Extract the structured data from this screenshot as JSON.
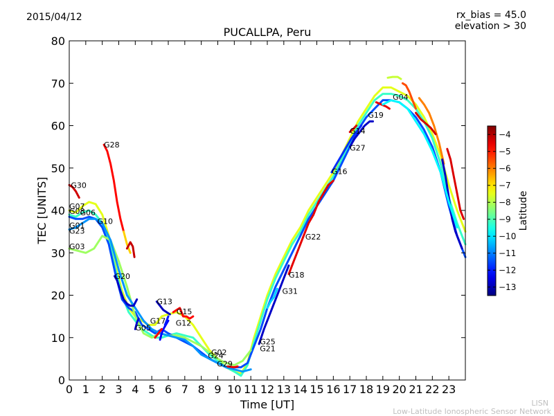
{
  "header": {
    "date": "2015/04/12",
    "title": "PUCALLPA, Peru",
    "rx_bias": "rx_bias = 45.0",
    "elevation": "elevation > 30"
  },
  "footer": {
    "line1": "LISN",
    "line2": "Low-Latitude Ionospheric Sensor Network"
  },
  "chart_data": {
    "type": "scatter",
    "title": "PUCALLPA, Peru",
    "xlabel": "Time [UT]",
    "ylabel": "TEC [UNITS]",
    "xlim": [
      0,
      24
    ],
    "ylim": [
      0,
      80
    ],
    "xticks": [
      0,
      1,
      2,
      3,
      4,
      5,
      6,
      7,
      8,
      9,
      10,
      11,
      12,
      13,
      14,
      15,
      16,
      17,
      18,
      19,
      20,
      21,
      22,
      23
    ],
    "yticks": [
      0,
      10,
      20,
      30,
      40,
      50,
      60,
      70,
      80
    ],
    "grid": false,
    "colorbar": {
      "label": "Latitude",
      "min": -13.5,
      "max": -3.5,
      "ticks": [
        -4,
        -5,
        -6,
        -7,
        -8,
        -9,
        -10,
        -11,
        -12,
        -13
      ],
      "colormap": "jet"
    },
    "labels": [
      {
        "text": "G28",
        "x": 2.1,
        "y": 55.5
      },
      {
        "text": "G30",
        "x": 0.1,
        "y": 46
      },
      {
        "text": "G07",
        "x": 0.0,
        "y": 41
      },
      {
        "text": "G08",
        "x": 0.0,
        "y": 39.8
      },
      {
        "text": "G06",
        "x": 0.65,
        "y": 39.5
      },
      {
        "text": "G10",
        "x": 1.7,
        "y": 37.5
      },
      {
        "text": "G01",
        "x": 0.0,
        "y": 36.5
      },
      {
        "text": "G23",
        "x": 0.0,
        "y": 35.2
      },
      {
        "text": "G03",
        "x": 0.0,
        "y": 31.5
      },
      {
        "text": "G20",
        "x": 2.75,
        "y": 24.5
      },
      {
        "text": "G13",
        "x": 5.3,
        "y": 18.5
      },
      {
        "text": "G15",
        "x": 6.5,
        "y": 16.2
      },
      {
        "text": "G17",
        "x": 4.9,
        "y": 14.0
      },
      {
        "text": "G12",
        "x": 6.45,
        "y": 13.5
      },
      {
        "text": "G05",
        "x": 4.0,
        "y": 12.3
      },
      {
        "text": "G02",
        "x": 8.6,
        "y": 6.5
      },
      {
        "text": "G24",
        "x": 8.4,
        "y": 5.8
      },
      {
        "text": "G29",
        "x": 8.95,
        "y": 3.8
      },
      {
        "text": "G25",
        "x": 11.55,
        "y": 9.1
      },
      {
        "text": "G21",
        "x": 11.55,
        "y": 7.4
      },
      {
        "text": "G31",
        "x": 12.9,
        "y": 21.0
      },
      {
        "text": "G18",
        "x": 13.3,
        "y": 24.8
      },
      {
        "text": "G22",
        "x": 14.3,
        "y": 33.8
      },
      {
        "text": "G16",
        "x": 15.9,
        "y": 49.2
      },
      {
        "text": "G27",
        "x": 17.0,
        "y": 54.8
      },
      {
        "text": "G14",
        "x": 17.0,
        "y": 58.8
      },
      {
        "text": "G19",
        "x": 18.1,
        "y": 62.5
      },
      {
        "text": "G04",
        "x": 19.6,
        "y": 66.8
      }
    ],
    "series": [
      {
        "lat": -7.5,
        "x": [
          0.0,
          0.4,
          0.8,
          1.2,
          1.6,
          2.0,
          2.4,
          2.8,
          3.2,
          3.6,
          4.0,
          4.4,
          4.8,
          5.2,
          5.6,
          6.0,
          6.5,
          7.0,
          7.5,
          8.0,
          8.5,
          9.0,
          9.5,
          10.0,
          10.4,
          10.8,
          11.2,
          11.6,
          12.0,
          12.5,
          13.0,
          13.5,
          14.0,
          14.5,
          15.0,
          15.5,
          16.0,
          16.5,
          17.0,
          17.5,
          18.0,
          18.5,
          19.0,
          19.5,
          20.0,
          20.5,
          21.0,
          21.5,
          22.0,
          22.5,
          23.0,
          23.5,
          24.0
        ],
        "y": [
          40,
          39.5,
          41,
          42,
          41.5,
          39,
          34,
          27,
          21,
          17,
          15,
          14,
          13,
          13,
          15,
          15.5,
          16,
          15,
          13,
          10,
          7,
          5,
          3,
          2,
          1.5,
          4,
          10,
          15,
          20,
          25,
          29,
          33,
          36,
          40,
          43,
          46,
          49,
          53,
          57,
          61,
          64,
          67,
          69,
          69,
          68,
          67,
          65,
          62,
          58,
          53,
          46,
          40,
          35
        ]
      },
      {
        "lat": -9.2,
        "x": [
          0.0,
          0.4,
          0.8,
          1.2,
          1.6,
          2.0,
          2.4,
          2.8,
          3.2,
          3.6,
          4.0,
          4.4,
          4.8,
          5.2,
          5.6,
          6.0,
          6.5,
          7.0,
          7.5,
          8.0,
          8.5,
          9.0,
          9.5,
          10.0,
          10.4,
          10.8,
          11.2,
          11.6,
          12.0,
          12.5,
          13.0,
          13.5,
          14.0,
          14.5,
          15.0,
          15.5,
          16.0,
          16.5,
          17.0,
          17.5,
          18.0,
          18.5,
          19.0,
          19.5,
          20.0,
          20.5,
          21.0,
          21.5,
          22.0,
          22.5,
          23.0,
          23.5,
          24.0
        ],
        "y": [
          39,
          38.5,
          39.5,
          40,
          39,
          37,
          33,
          26,
          20,
          16,
          14,
          12,
          11,
          10,
          10,
          10.5,
          11,
          10.5,
          10,
          8,
          6,
          4.5,
          3,
          2,
          1,
          3.5,
          9,
          14,
          19,
          24,
          28,
          32,
          35,
          39,
          42,
          45,
          48,
          52,
          56,
          60,
          63,
          66,
          67.5,
          67.5,
          67,
          66,
          64,
          61,
          57,
          51,
          43,
          37,
          32
        ]
      },
      {
        "lat": -11.5,
        "x": [
          0.0,
          0.4,
          0.8,
          1.2,
          1.6,
          2.0,
          2.4,
          2.8,
          3.2,
          3.6,
          4.0,
          4.4,
          4.8,
          5.2,
          5.6,
          6.0,
          6.5,
          7.0,
          7.5,
          8.0,
          8.5,
          9.0,
          9.5,
          10.0,
          10.4,
          10.8,
          11.2,
          11.6,
          12.0,
          12.5,
          13.0,
          13.5,
          14.0,
          14.5,
          15.0,
          15.5,
          16.0,
          16.5,
          17.0,
          17.5,
          18.0,
          18.5,
          19.0,
          19.5,
          20.0,
          20.5,
          21.0,
          21.5,
          22.0,
          22.5,
          23.0,
          23.5,
          24.0
        ],
        "y": [
          38.5,
          38,
          38,
          38.5,
          38,
          36,
          32,
          25,
          19,
          17,
          16,
          13,
          12,
          11,
          12,
          11,
          10,
          9,
          8,
          6.5,
          5,
          4,
          3,
          3,
          3,
          4,
          8,
          12,
          17,
          22,
          26,
          30,
          34,
          38,
          41,
          44,
          47,
          51,
          55,
          59,
          62,
          64,
          66,
          66,
          65.5,
          64,
          62,
          59,
          55,
          49,
          41,
          34,
          29
        ]
      },
      {
        "lat": -8.2,
        "x": [
          0.0,
          0.5,
          1.0,
          1.5,
          2.0,
          2.5,
          3.0,
          3.5,
          4.0,
          4.5,
          5.0,
          5.5,
          6.0,
          6.5,
          7.0,
          7.5,
          8.0,
          8.5,
          9.0,
          9.5,
          10.0,
          10.5,
          11.0
        ],
        "y": [
          31,
          30.5,
          30,
          31,
          34,
          33,
          28,
          22,
          15,
          11,
          10,
          11,
          10.5,
          10.5,
          10,
          9,
          8,
          6.5,
          5,
          4,
          3.5,
          4.5,
          7
        ]
      },
      {
        "lat": -10.8,
        "x": [
          0.0,
          0.4,
          0.8,
          1.2,
          1.6,
          2.0,
          2.5,
          3.0,
          3.5,
          4.0,
          4.5,
          5.0,
          5.5,
          6.0,
          6.5,
          7.0,
          7.5,
          8.0,
          8.5,
          9.0,
          9.5,
          10.0,
          10.5,
          11.0
        ],
        "y": [
          35.5,
          36,
          37,
          38,
          38,
          37,
          33,
          26,
          20,
          17,
          14,
          12,
          11,
          10.5,
          10,
          9.5,
          8,
          6,
          5,
          4,
          3,
          2.5,
          2,
          2.5
        ]
      },
      {
        "lat": -4.8,
        "x": [
          2.1,
          2.3,
          2.5,
          2.7,
          2.9,
          3.1,
          3.3
        ],
        "y": [
          55.5,
          54,
          51,
          47,
          42,
          38,
          35
        ]
      },
      {
        "lat": -6.8,
        "x": [
          3.3,
          3.5,
          3.7
        ],
        "y": [
          35,
          32,
          30
        ]
      },
      {
        "lat": -4.2,
        "x": [
          3.5,
          3.7,
          3.85,
          3.95
        ],
        "y": [
          31,
          32.5,
          31.5,
          29
        ]
      },
      {
        "lat": -4.3,
        "x": [
          0.0,
          0.2,
          0.4,
          0.6
        ],
        "y": [
          46,
          45.5,
          44.5,
          43
        ]
      },
      {
        "lat": -12.8,
        "x": [
          2.75,
          2.9,
          3.1,
          3.3,
          3.5,
          3.7,
          3.9,
          4.1
        ],
        "y": [
          24.5,
          23.5,
          21,
          19,
          18,
          17.5,
          17.5,
          19
        ]
      },
      {
        "lat": -12.9,
        "x": [
          5.3,
          5.5,
          5.7,
          5.9,
          6.1
        ],
        "y": [
          18.5,
          17.5,
          16.5,
          16,
          15.5
        ]
      },
      {
        "lat": -4.8,
        "x": [
          6.3,
          6.5,
          6.7,
          6.9,
          7.1,
          7.3,
          7.5
        ],
        "y": [
          16,
          16.5,
          17,
          15,
          15,
          14.5,
          15
        ]
      },
      {
        "lat": -12.7,
        "x": [
          4.0,
          4.1,
          4.2
        ],
        "y": [
          12,
          13.5,
          14.5
        ]
      },
      {
        "lat": -12.3,
        "x": [
          5.5,
          5.6,
          5.7,
          5.85,
          6.0
        ],
        "y": [
          9.5,
          11,
          12,
          13,
          14
        ]
      },
      {
        "lat": -12.8,
        "x": [
          11.5,
          11.8,
          12.1,
          12.4,
          12.7,
          13.0,
          13.3
        ],
        "y": [
          8.5,
          12,
          15,
          18,
          21,
          24,
          27
        ]
      },
      {
        "lat": -10.2,
        "x": [
          12.0,
          12.2,
          12.4,
          12.6
        ],
        "y": [
          17,
          18.5,
          19.5,
          21.5
        ]
      },
      {
        "lat": -4.5,
        "x": [
          13.3,
          13.6,
          13.9,
          14.2,
          14.5,
          14.8,
          15.1,
          15.4,
          15.7,
          16.0
        ],
        "y": [
          25,
          28,
          31,
          34,
          37,
          39,
          42,
          44,
          46,
          47
        ]
      },
      {
        "lat": -11.8,
        "x": [
          15.9,
          16.2,
          16.5,
          16.8,
          17.1,
          17.4,
          17.7
        ],
        "y": [
          49,
          51,
          53,
          55,
          57,
          58.5,
          60
        ]
      },
      {
        "lat": -12.8,
        "x": [
          17.0,
          17.3,
          17.6,
          17.9,
          18.2,
          18.4
        ],
        "y": [
          55,
          57,
          58.5,
          60,
          61,
          61
        ]
      },
      {
        "lat": -4.4,
        "x": [
          17.0,
          17.2,
          17.4
        ],
        "y": [
          58.5,
          59.2,
          60
        ]
      },
      {
        "lat": -4.5,
        "x": [
          18.6,
          18.9,
          19.2,
          19.4
        ],
        "y": [
          65.5,
          65,
          64.5,
          64
        ]
      },
      {
        "lat": -7.8,
        "x": [
          19.3,
          19.6,
          19.9,
          20.1
        ],
        "y": [
          71.3,
          71.5,
          71.5,
          71
        ]
      },
      {
        "lat": -5.5,
        "x": [
          20.2,
          20.4,
          20.6,
          20.8,
          21.0
        ],
        "y": [
          70,
          69.5,
          68,
          66,
          64
        ]
      },
      {
        "lat": -6.0,
        "x": [
          21.2,
          21.5,
          21.8,
          22.1,
          22.4,
          22.7
        ],
        "y": [
          66.5,
          65,
          63,
          60,
          56,
          51
        ]
      },
      {
        "lat": -4.3,
        "x": [
          21.0,
          21.3,
          21.6,
          21.9,
          22.2
        ],
        "y": [
          63,
          61.5,
          60.5,
          59.5,
          58
        ]
      },
      {
        "lat": -4.4,
        "x": [
          22.9,
          23.1,
          23.3,
          23.5,
          23.7,
          23.9
        ],
        "y": [
          54.5,
          52,
          48,
          44,
          40,
          38
        ]
      },
      {
        "lat": -12.8,
        "x": [
          22.6,
          22.8,
          23.0,
          23.2,
          23.4,
          23.6,
          23.8
        ],
        "y": [
          52,
          48,
          43,
          38,
          35,
          33,
          31
        ]
      },
      {
        "lat": -9.8,
        "x": [
          19.0,
          19.5,
          20.0,
          20.5,
          21.0,
          21.5,
          22.0,
          22.5,
          23.0,
          23.5
        ],
        "y": [
          65,
          66,
          65.5,
          64,
          61,
          58,
          54,
          49,
          42,
          36
        ]
      },
      {
        "lat": -4.6,
        "x": [
          9.6,
          9.8,
          10.0,
          10.2
        ],
        "y": [
          3.2,
          3.1,
          3.0,
          3.2
        ]
      },
      {
        "lat": -4.7,
        "x": [
          5.2,
          5.4,
          5.6
        ],
        "y": [
          10,
          11,
          12
        ]
      },
      {
        "lat": -12.0,
        "x": [
          5.8,
          5.9,
          6.0
        ],
        "y": [
          13,
          14,
          15
        ]
      }
    ]
  }
}
